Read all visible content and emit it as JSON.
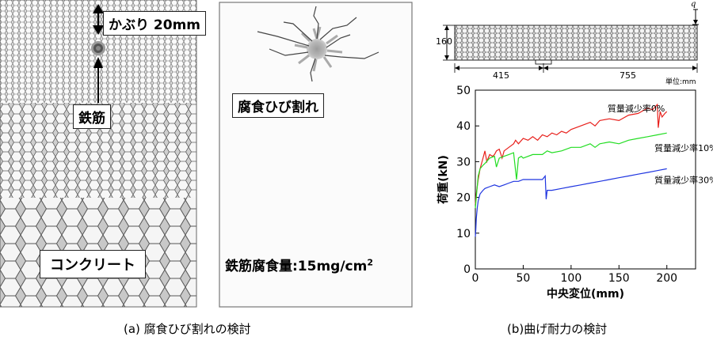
{
  "panel_a": {
    "cover_label": "かぶり 20mm",
    "rebar_label": "鉄筋",
    "concrete_label": "コンクリート",
    "crack_label": "腐食ひび割れ",
    "corrosion_label": "鉄筋腐食量:15mg/cm",
    "corrosion_superscript": "2",
    "caption": "(a) 腐食ひび割れの検討"
  },
  "panel_b": {
    "beam": {
      "height_label": "160",
      "left_span_label": "415",
      "right_span_label": "755",
      "unit_label": "単位:mm",
      "load_symbol": "q"
    },
    "caption": "(b)曲げ耐力の検討"
  },
  "chart_data": {
    "type": "line",
    "xlabel": "中央変位(mm)",
    "ylabel": "荷重(kN)",
    "xlim": [
      0,
      230
    ],
    "ylim": [
      0,
      50
    ],
    "xticks": [
      "0",
      "50",
      "100",
      "150",
      "200"
    ],
    "yticks": [
      "0",
      "10",
      "20",
      "30",
      "40",
      "50"
    ],
    "grid": false,
    "series": [
      {
        "name": "質量減少率0%",
        "color": "#e8201c",
        "x": [
          0,
          1,
          2,
          3,
          5,
          8,
          10,
          12,
          15,
          18,
          20,
          22,
          25,
          28,
          30,
          35,
          40,
          42,
          45,
          50,
          55,
          60,
          65,
          70,
          75,
          80,
          85,
          90,
          95,
          100,
          110,
          120,
          125,
          130,
          140,
          150,
          160,
          170,
          180,
          185,
          190,
          191,
          193,
          195,
          198,
          200
        ],
        "y": [
          18,
          21,
          23,
          25,
          28,
          31,
          33,
          30,
          32,
          31.5,
          32,
          33,
          33.5,
          31,
          33,
          34,
          35,
          36,
          35,
          36.5,
          36,
          37,
          36,
          37.5,
          37,
          38,
          37.5,
          38.5,
          38,
          39,
          40,
          41,
          40,
          41.5,
          42,
          41.5,
          43,
          43.5,
          45,
          44.5,
          46,
          39.5,
          44,
          42.5,
          43.5,
          44
        ]
      },
      {
        "name": "質量減少率10%",
        "color": "#22dd22",
        "x": [
          0,
          1,
          2,
          3,
          5,
          8,
          10,
          15,
          20,
          22,
          25,
          30,
          35,
          40,
          43,
          45,
          48,
          50,
          60,
          70,
          75,
          80,
          90,
          100,
          110,
          120,
          125,
          130,
          140,
          150,
          160,
          170,
          180,
          190,
          200
        ],
        "y": [
          17,
          20,
          23,
          26,
          28,
          29,
          29.5,
          31,
          31.5,
          28.5,
          31,
          31.5,
          32,
          32.5,
          25,
          31,
          31.5,
          31,
          32,
          32,
          33,
          32.5,
          33,
          34,
          34,
          35,
          34,
          35,
          35.5,
          35,
          36,
          36.5,
          37,
          37.5,
          38
        ]
      },
      {
        "name": "質量減少率30%",
        "color": "#1f35e0",
        "x": [
          0,
          0.5,
          1,
          2,
          3,
          5,
          8,
          10,
          15,
          20,
          25,
          30,
          35,
          40,
          45,
          50,
          60,
          70,
          73,
          74,
          75,
          80,
          90,
          100,
          110,
          120,
          130,
          140,
          150,
          160,
          170,
          180,
          190,
          200
        ],
        "y": [
          9,
          11,
          14,
          17,
          19,
          21,
          22,
          22.5,
          23,
          23.5,
          23,
          23.5,
          24,
          24.5,
          24.5,
          25,
          25,
          25,
          26,
          19.5,
          22,
          22,
          22.5,
          23,
          23.5,
          24,
          24.5,
          25,
          25.5,
          26,
          26.5,
          27,
          27.5,
          28
        ]
      }
    ],
    "annotations": [
      "質量減少率0%",
      "質量減少率10%",
      "質量減少率30%"
    ]
  }
}
